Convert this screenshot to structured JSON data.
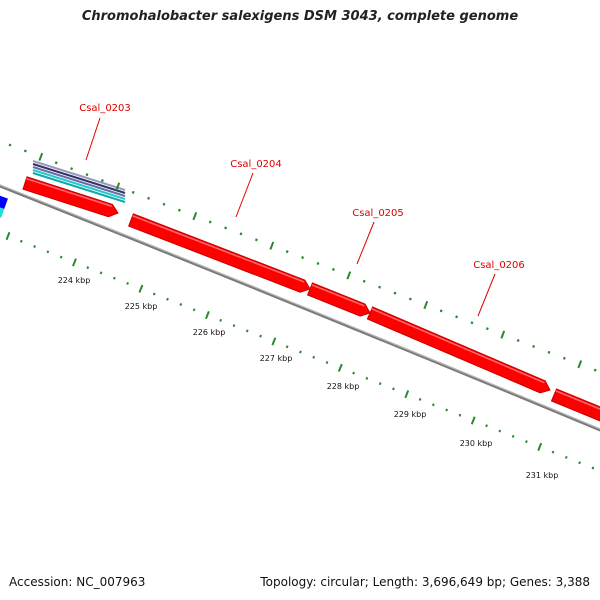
{
  "title": "Chromohalobacter salexigens DSM 3043, complete genome",
  "footer": {
    "accession": "Accession: NC_007963",
    "summary": "Topology: circular; Length: 3,696,649 bp; Genes: 3,388"
  },
  "genes": [
    {
      "id": "Csal_0203",
      "strand": "+",
      "color": "#ff0000"
    },
    {
      "id": "Csal_0204",
      "strand": "+",
      "color": "#ff0000"
    },
    {
      "id": "Csal_0205",
      "strand": "+",
      "color": "#ff0000"
    },
    {
      "id": "Csal_0206",
      "strand": "+",
      "color": "#ff0000"
    },
    {
      "id": "",
      "strand": "+",
      "color": "#ff0000"
    }
  ],
  "scale": {
    "unit": "kbp",
    "ticks": [
      "224 kbp",
      "225 kbp",
      "226 kbp",
      "227 kbp",
      "228 kbp",
      "229 kbp",
      "230 kbp",
      "231 kbp"
    ]
  },
  "colors": {
    "gene": "#ff0000",
    "gene_dark": "#c80000",
    "backbone": "#7a7a7a",
    "tick": "#2a8a2a",
    "label": "#e00000",
    "feature_blue": "#0000ff",
    "feature_cyan": "#22cccc",
    "feature_navy": "#333366"
  }
}
